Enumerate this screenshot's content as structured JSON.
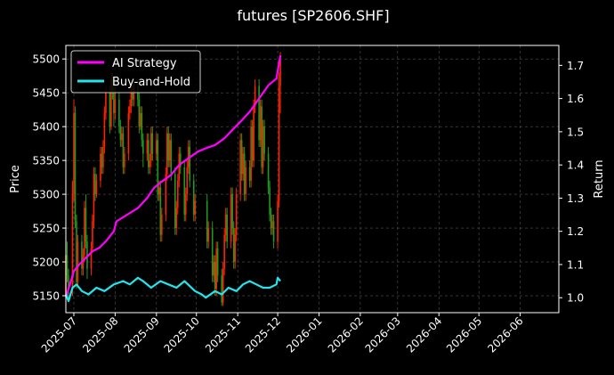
{
  "chart_data": {
    "type": "line",
    "title": "futures [SP2606.SHF]",
    "ylabel_left": "Price",
    "ylabel_right": "Return",
    "x_ticks": [
      "2025-07",
      "2025-08",
      "2025-09",
      "2025-10",
      "2025-11",
      "2025-12",
      "2026-01",
      "2026-02",
      "2026-03",
      "2026-04",
      "2026-05",
      "2026-06"
    ],
    "xlim": [
      "2025-06-25",
      "2026-06-30"
    ],
    "left_ylim": [
      5125,
      5520
    ],
    "left_ticks": [
      5150,
      5200,
      5250,
      5300,
      5350,
      5400,
      5450,
      5500
    ],
    "right_ylim": [
      0.955,
      1.76
    ],
    "right_ticks": [
      1.0,
      1.1,
      1.2,
      1.3,
      1.4,
      1.5,
      1.6,
      1.7
    ],
    "grid": true,
    "legend_position": "top-left",
    "colors": {
      "background": "#000000",
      "ai": "#ff00ff",
      "bh": "#22e5ee",
      "up": "#ff2200",
      "down": "#1e9b1e",
      "grid": "#555555"
    },
    "series": [
      {
        "name": "AI Strategy",
        "color": "#ff00ff",
        "points": [
          [
            "2025-06-25",
            1.0
          ],
          [
            "2025-06-28",
            1.04
          ],
          [
            "2025-07-01",
            1.08
          ],
          [
            "2025-07-05",
            1.1
          ],
          [
            "2025-07-10",
            1.12
          ],
          [
            "2025-07-15",
            1.14
          ],
          [
            "2025-07-20",
            1.15
          ],
          [
            "2025-07-25",
            1.17
          ],
          [
            "2025-07-31",
            1.2
          ],
          [
            "2025-08-02",
            1.23
          ],
          [
            "2025-08-10",
            1.25
          ],
          [
            "2025-08-18",
            1.27
          ],
          [
            "2025-08-25",
            1.3
          ],
          [
            "2025-08-30",
            1.33
          ],
          [
            "2025-09-05",
            1.35
          ],
          [
            "2025-09-12",
            1.37
          ],
          [
            "2025-09-18",
            1.4
          ],
          [
            "2025-09-25",
            1.42
          ],
          [
            "2025-10-02",
            1.44
          ],
          [
            "2025-10-08",
            1.45
          ],
          [
            "2025-10-15",
            1.46
          ],
          [
            "2025-10-22",
            1.48
          ],
          [
            "2025-10-29",
            1.51
          ],
          [
            "2025-11-03",
            1.53
          ],
          [
            "2025-11-10",
            1.56
          ],
          [
            "2025-11-17",
            1.6
          ],
          [
            "2025-11-24",
            1.64
          ],
          [
            "2025-11-30",
            1.66
          ],
          [
            "2025-12-03",
            1.73
          ]
        ]
      },
      {
        "name": "Buy-and-Hold",
        "color": "#22e5ee",
        "points": [
          [
            "2025-06-25",
            1.01
          ],
          [
            "2025-06-27",
            0.99
          ],
          [
            "2025-06-30",
            1.03
          ],
          [
            "2025-07-03",
            1.04
          ],
          [
            "2025-07-07",
            1.02
          ],
          [
            "2025-07-12",
            1.01
          ],
          [
            "2025-07-18",
            1.03
          ],
          [
            "2025-07-24",
            1.02
          ],
          [
            "2025-07-31",
            1.04
          ],
          [
            "2025-08-07",
            1.05
          ],
          [
            "2025-08-12",
            1.04
          ],
          [
            "2025-08-18",
            1.06
          ],
          [
            "2025-08-22",
            1.05
          ],
          [
            "2025-08-28",
            1.03
          ],
          [
            "2025-09-04",
            1.05
          ],
          [
            "2025-09-10",
            1.04
          ],
          [
            "2025-09-16",
            1.03
          ],
          [
            "2025-09-22",
            1.05
          ],
          [
            "2025-09-30",
            1.02
          ],
          [
            "2025-10-05",
            1.01
          ],
          [
            "2025-10-08",
            1.0
          ],
          [
            "2025-10-15",
            1.02
          ],
          [
            "2025-10-20",
            1.01
          ],
          [
            "2025-10-25",
            1.03
          ],
          [
            "2025-10-31",
            1.02
          ],
          [
            "2025-11-05",
            1.04
          ],
          [
            "2025-11-10",
            1.05
          ],
          [
            "2025-11-15",
            1.04
          ],
          [
            "2025-11-20",
            1.03
          ],
          [
            "2025-11-25",
            1.03
          ],
          [
            "2025-11-30",
            1.04
          ],
          [
            "2025-12-01",
            1.06
          ],
          [
            "2025-12-03",
            1.05
          ]
        ]
      }
    ],
    "candles": [
      [
        "2025-06-25",
        5150,
        5210,
        5140,
        5225
      ],
      [
        "2025-06-26",
        5210,
        5180,
        5170,
        5230
      ],
      [
        "2025-06-27",
        5180,
        5160,
        5145,
        5190
      ],
      [
        "2025-06-30",
        5160,
        5300,
        5150,
        5320
      ],
      [
        "2025-07-01",
        5300,
        5420,
        5290,
        5440
      ],
      [
        "2025-07-02",
        5420,
        5260,
        5250,
        5430
      ],
      [
        "2025-07-03",
        5260,
        5170,
        5160,
        5270
      ],
      [
        "2025-07-04",
        5170,
        5230,
        5165,
        5240
      ],
      [
        "2025-07-07",
        5230,
        5190,
        5180,
        5240
      ],
      [
        "2025-07-08",
        5190,
        5210,
        5180,
        5220
      ],
      [
        "2025-07-09",
        5210,
        5280,
        5200,
        5290
      ],
      [
        "2025-07-10",
        5280,
        5230,
        5220,
        5300
      ],
      [
        "2025-07-11",
        5230,
        5190,
        5175,
        5240
      ],
      [
        "2025-07-14",
        5190,
        5220,
        5180,
        5230
      ],
      [
        "2025-07-15",
        5220,
        5260,
        5215,
        5270
      ],
      [
        "2025-07-16",
        5260,
        5330,
        5250,
        5340
      ],
      [
        "2025-07-17",
        5330,
        5300,
        5290,
        5340
      ],
      [
        "2025-07-18",
        5300,
        5320,
        5295,
        5330
      ],
      [
        "2025-07-21",
        5320,
        5360,
        5310,
        5370
      ],
      [
        "2025-07-22",
        5360,
        5340,
        5330,
        5370
      ],
      [
        "2025-07-23",
        5340,
        5370,
        5330,
        5380
      ],
      [
        "2025-07-24",
        5370,
        5420,
        5360,
        5430
      ],
      [
        "2025-07-25",
        5420,
        5450,
        5410,
        5460
      ],
      [
        "2025-07-28",
        5450,
        5400,
        5390,
        5460
      ],
      [
        "2025-07-29",
        5400,
        5470,
        5395,
        5480
      ],
      [
        "2025-07-30",
        5470,
        5450,
        5440,
        5480
      ],
      [
        "2025-07-31",
        5450,
        5420,
        5400,
        5460
      ],
      [
        "2025-08-01",
        5420,
        5440,
        5410,
        5460
      ],
      [
        "2025-08-04",
        5440,
        5400,
        5390,
        5450
      ],
      [
        "2025-08-05",
        5400,
        5380,
        5370,
        5410
      ],
      [
        "2025-08-06",
        5380,
        5390,
        5370,
        5400
      ],
      [
        "2025-08-07",
        5390,
        5340,
        5330,
        5400
      ],
      [
        "2025-08-08",
        5340,
        5360,
        5330,
        5370
      ],
      [
        "2025-08-11",
        5360,
        5420,
        5350,
        5430
      ],
      [
        "2025-08-12",
        5420,
        5430,
        5410,
        5440
      ],
      [
        "2025-08-13",
        5430,
        5450,
        5420,
        5460
      ],
      [
        "2025-08-14",
        5450,
        5440,
        5430,
        5460
      ],
      [
        "2025-08-15",
        5440,
        5460,
        5430,
        5470
      ],
      [
        "2025-08-18",
        5460,
        5440,
        5430,
        5470
      ],
      [
        "2025-08-19",
        5440,
        5400,
        5390,
        5450
      ],
      [
        "2025-08-20",
        5400,
        5420,
        5395,
        5430
      ],
      [
        "2025-08-21",
        5420,
        5380,
        5370,
        5430
      ],
      [
        "2025-08-22",
        5380,
        5360,
        5340,
        5390
      ],
      [
        "2025-08-25",
        5360,
        5380,
        5350,
        5390
      ],
      [
        "2025-08-26",
        5380,
        5340,
        5330,
        5390
      ],
      [
        "2025-08-27",
        5340,
        5350,
        5330,
        5360
      ],
      [
        "2025-08-28",
        5350,
        5390,
        5340,
        5400
      ],
      [
        "2025-08-29",
        5390,
        5360,
        5350,
        5400
      ],
      [
        "2025-09-01",
        5360,
        5380,
        5350,
        5390
      ],
      [
        "2025-09-02",
        5380,
        5300,
        5290,
        5390
      ],
      [
        "2025-09-03",
        5300,
        5310,
        5290,
        5320
      ],
      [
        "2025-09-04",
        5310,
        5240,
        5230,
        5320
      ],
      [
        "2025-09-05",
        5240,
        5270,
        5230,
        5280
      ],
      [
        "2025-09-08",
        5270,
        5330,
        5260,
        5340
      ],
      [
        "2025-09-09",
        5330,
        5390,
        5320,
        5400
      ],
      [
        "2025-09-10",
        5390,
        5350,
        5340,
        5400
      ],
      [
        "2025-09-11",
        5350,
        5380,
        5340,
        5390
      ],
      [
        "2025-09-12",
        5380,
        5330,
        5320,
        5390
      ],
      [
        "2025-09-15",
        5330,
        5250,
        5240,
        5340
      ],
      [
        "2025-09-16",
        5250,
        5280,
        5240,
        5290
      ],
      [
        "2025-09-17",
        5280,
        5320,
        5270,
        5330
      ],
      [
        "2025-09-18",
        5320,
        5360,
        5310,
        5370
      ],
      [
        "2025-09-19",
        5360,
        5340,
        5330,
        5370
      ],
      [
        "2025-09-22",
        5340,
        5270,
        5260,
        5350
      ],
      [
        "2025-09-23",
        5270,
        5300,
        5260,
        5310
      ],
      [
        "2025-09-24",
        5300,
        5340,
        5290,
        5350
      ],
      [
        "2025-09-25",
        5340,
        5370,
        5330,
        5380
      ],
      [
        "2025-09-26",
        5370,
        5320,
        5310,
        5380
      ],
      [
        "2025-09-29",
        5320,
        5270,
        5260,
        5330
      ],
      [
        "2025-09-30",
        5270,
        5290,
        5260,
        5300
      ],
      [
        "2025-10-09",
        5290,
        5230,
        5220,
        5300
      ],
      [
        "2025-10-10",
        5230,
        5250,
        5220,
        5260
      ],
      [
        "2025-10-13",
        5250,
        5180,
        5170,
        5260
      ],
      [
        "2025-10-14",
        5180,
        5200,
        5170,
        5210
      ],
      [
        "2025-10-15",
        5200,
        5160,
        5150,
        5210
      ],
      [
        "2025-10-16",
        5160,
        5220,
        5150,
        5230
      ],
      [
        "2025-10-17",
        5220,
        5180,
        5170,
        5230
      ],
      [
        "2025-10-20",
        5180,
        5140,
        5135,
        5190
      ],
      [
        "2025-10-21",
        5140,
        5190,
        5135,
        5200
      ],
      [
        "2025-10-22",
        5190,
        5240,
        5180,
        5250
      ],
      [
        "2025-10-23",
        5240,
        5270,
        5230,
        5280
      ],
      [
        "2025-10-24",
        5270,
        5230,
        5220,
        5280
      ],
      [
        "2025-10-27",
        5230,
        5300,
        5220,
        5310
      ],
      [
        "2025-10-28",
        5300,
        5250,
        5240,
        5310
      ],
      [
        "2025-10-29",
        5250,
        5200,
        5190,
        5260
      ],
      [
        "2025-10-30",
        5200,
        5240,
        5190,
        5250
      ],
      [
        "2025-10-31",
        5240,
        5300,
        5230,
        5310
      ],
      [
        "2025-11-03",
        5300,
        5380,
        5290,
        5390
      ],
      [
        "2025-11-04",
        5380,
        5330,
        5320,
        5390
      ],
      [
        "2025-11-05",
        5330,
        5360,
        5320,
        5370
      ],
      [
        "2025-11-06",
        5360,
        5300,
        5290,
        5370
      ],
      [
        "2025-11-07",
        5300,
        5340,
        5290,
        5350
      ],
      [
        "2025-11-10",
        5340,
        5320,
        5310,
        5350
      ],
      [
        "2025-11-11",
        5320,
        5400,
        5310,
        5410
      ],
      [
        "2025-11-12",
        5400,
        5350,
        5340,
        5410
      ],
      [
        "2025-11-13",
        5350,
        5430,
        5340,
        5440
      ],
      [
        "2025-11-14",
        5430,
        5460,
        5420,
        5470
      ],
      [
        "2025-11-17",
        5460,
        5380,
        5370,
        5470
      ],
      [
        "2025-11-18",
        5380,
        5430,
        5370,
        5440
      ],
      [
        "2025-11-19",
        5430,
        5340,
        5330,
        5440
      ],
      [
        "2025-11-20",
        5340,
        5400,
        5330,
        5410
      ],
      [
        "2025-11-21",
        5400,
        5360,
        5350,
        5410
      ],
      [
        "2025-11-24",
        5360,
        5310,
        5300,
        5370
      ],
      [
        "2025-11-25",
        5310,
        5270,
        5260,
        5320
      ],
      [
        "2025-11-26",
        5270,
        5250,
        5240,
        5280
      ],
      [
        "2025-11-27",
        5250,
        5260,
        5240,
        5270
      ],
      [
        "2025-11-28",
        5260,
        5230,
        5220,
        5270
      ],
      [
        "2025-12-01",
        5230,
        5290,
        5220,
        5300
      ],
      [
        "2025-12-02",
        5290,
        5460,
        5280,
        5480
      ],
      [
        "2025-12-03",
        5460,
        5500,
        5420,
        5510
      ]
    ]
  }
}
